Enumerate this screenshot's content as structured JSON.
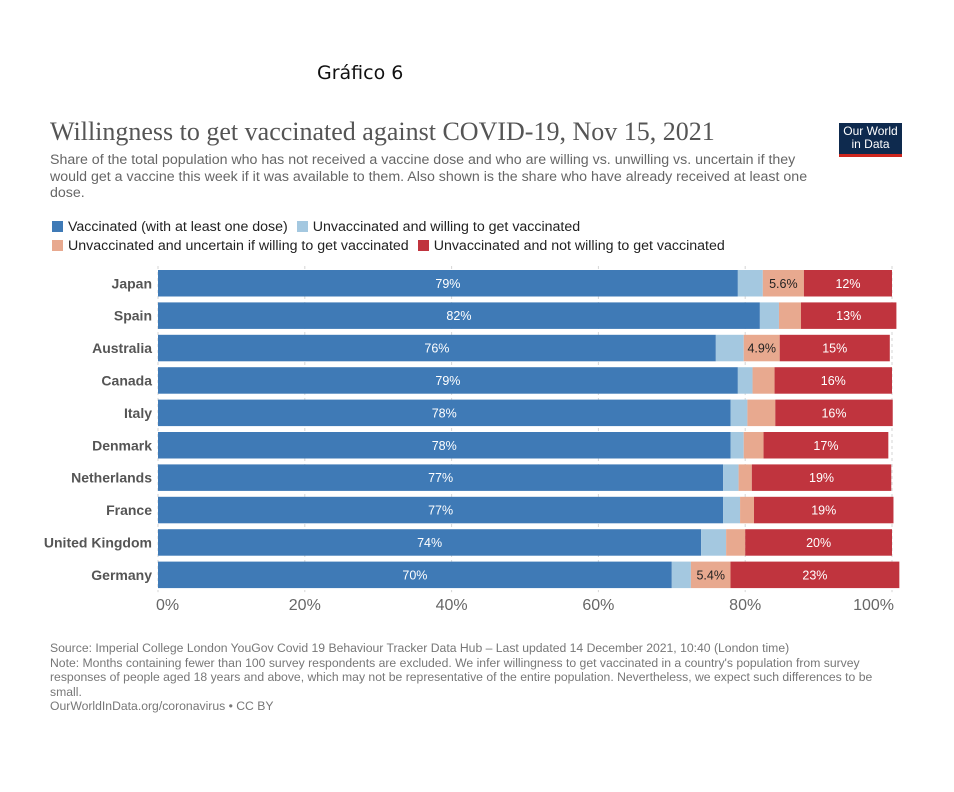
{
  "figure_caption": "Gráfico 6",
  "logo": {
    "line1": "Our World",
    "line2": "in Data"
  },
  "chart_data": {
    "type": "bar",
    "orientation": "horizontal",
    "stacked": true,
    "title": "Willingness to get vaccinated against COVID-19, Nov 15, 2021",
    "subtitle": "Share of the total population who has not received a vaccine dose and who are willing vs. unwilling vs. uncertain if they would get a vaccine this week if it was available to them. Also shown is the share who have already received at least one dose.",
    "categories": [
      "Japan",
      "Spain",
      "Australia",
      "Canada",
      "Italy",
      "Denmark",
      "Netherlands",
      "France",
      "United Kingdom",
      "Germany"
    ],
    "series": [
      {
        "name": "Vaccinated (with at least one dose)",
        "color": "#3f7ab6",
        "values": [
          79,
          82,
          76,
          79,
          78,
          78,
          77,
          77,
          74,
          70
        ],
        "labels": [
          "79%",
          "82%",
          "76%",
          "79%",
          "78%",
          "78%",
          "77%",
          "77%",
          "74%",
          "70%"
        ]
      },
      {
        "name": "Unvaccinated and willing to get vaccinated",
        "color": "#a4c8e0",
        "values": [
          3.4,
          2.6,
          3.8,
          2.0,
          2.3,
          1.8,
          2.1,
          2.3,
          3.4,
          2.6
        ],
        "labels": [
          "",
          "",
          "",
          "",
          "",
          "",
          "",
          "",
          "",
          ""
        ]
      },
      {
        "name": "Unvaccinated and uncertain if willing to get vaccinated",
        "color": "#e8a98f",
        "values": [
          5.6,
          3.0,
          4.9,
          3.0,
          3.8,
          2.7,
          1.8,
          1.9,
          2.6,
          5.4
        ],
        "labels": [
          "5.6%",
          "",
          "4.9%",
          "",
          "",
          "",
          "",
          "",
          "",
          "5.4%"
        ]
      },
      {
        "name": "Unvaccinated and not willing to get vaccinated",
        "color": "#c0343e",
        "values": [
          12,
          13,
          15,
          16,
          16,
          17,
          19,
          19,
          20,
          23
        ],
        "labels": [
          "12%",
          "13%",
          "15%",
          "16%",
          "16%",
          "17%",
          "19%",
          "19%",
          "20%",
          "23%"
        ]
      }
    ],
    "xlim": [
      0,
      100
    ],
    "xticks": [
      "0%",
      "20%",
      "40%",
      "60%",
      "80%",
      "100%"
    ],
    "grid": true,
    "legend_position": "top"
  },
  "footer": {
    "source": "Source: Imperial College London YouGov Covid 19 Behaviour Tracker Data Hub – Last updated 14 December 2021, 10:40 (London time)",
    "note": "Note: Months containing fewer than 100 survey respondents are excluded. We infer willingness to get vaccinated in a country's population from survey responses of people aged 18 years and above, which may not be representative of the entire population. Nevertheless, we expect such differences to be small.",
    "credit": "OurWorldInData.org/coronavirus • CC BY"
  }
}
